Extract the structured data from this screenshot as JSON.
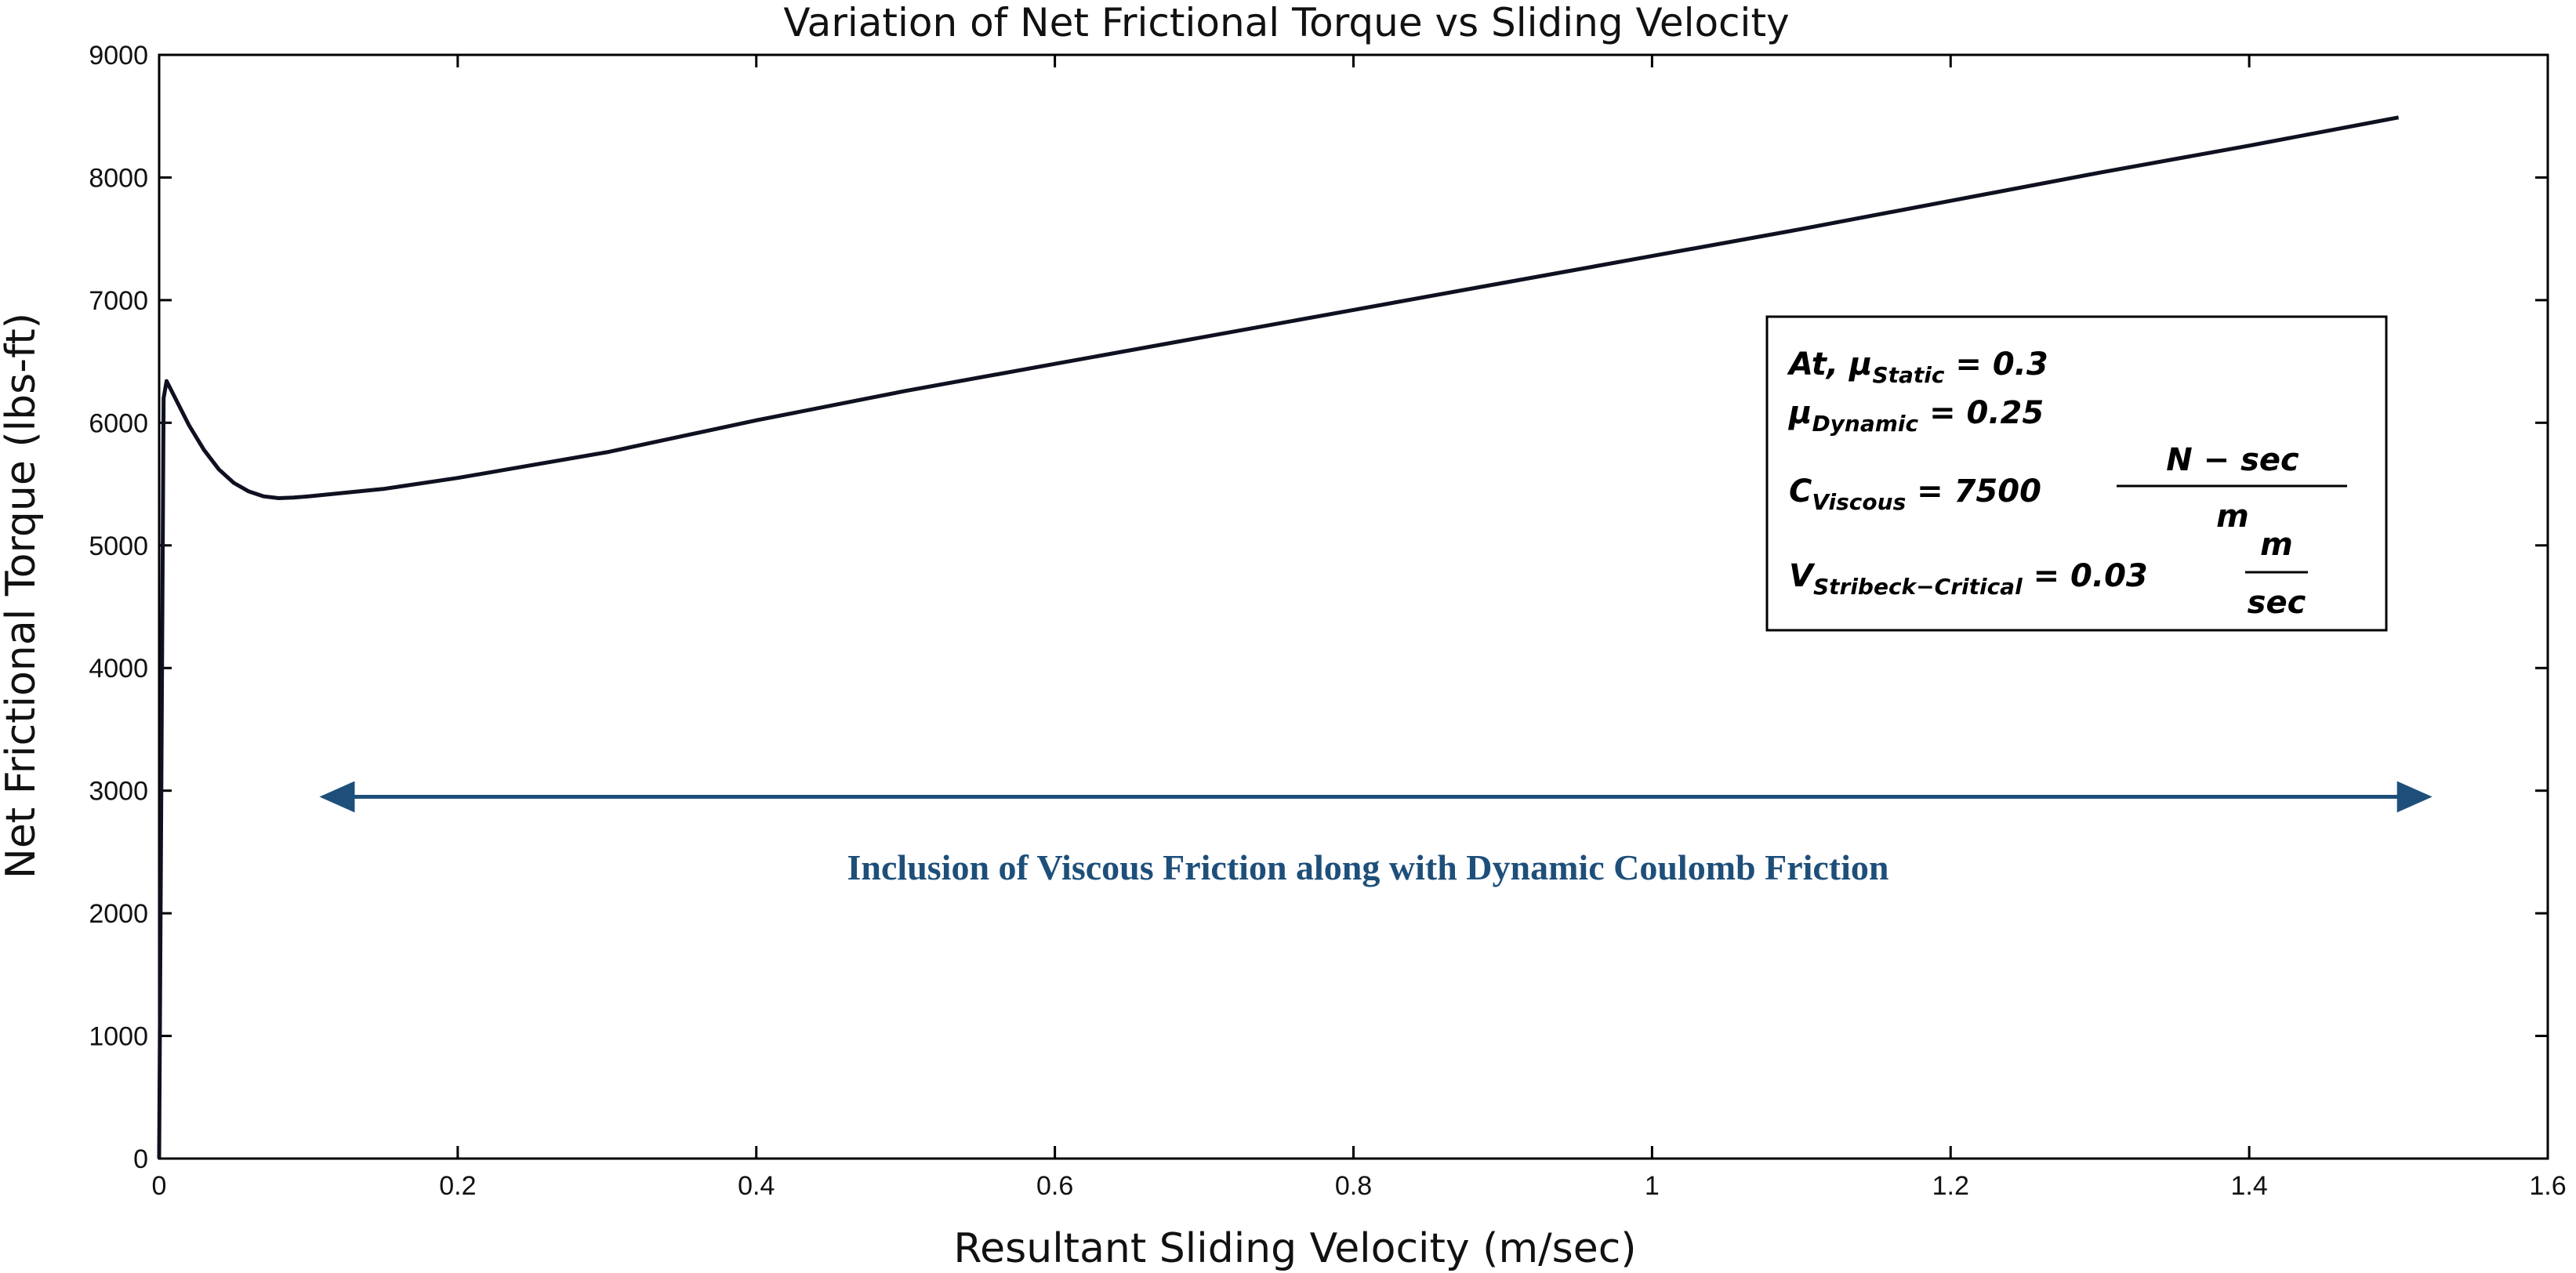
{
  "chart_data": {
    "type": "line",
    "title": "Variation of Net Frictional Torque vs Sliding Velocity",
    "xlabel": "Resultant Sliding Velocity (m/sec)",
    "ylabel": "Net Frictional Torque (lbs-ft)",
    "xlim": [
      0,
      1.6
    ],
    "ylim": [
      0,
      9000
    ],
    "xticks": [
      0,
      0.2,
      0.4,
      0.6,
      0.8,
      1,
      1.2,
      1.4,
      1.6
    ],
    "xtick_labels": [
      "0",
      "0.2",
      "0.4",
      "0.6",
      "0.8",
      "1",
      "1.2",
      "1.4",
      "1.6"
    ],
    "yticks": [
      0,
      1000,
      2000,
      3000,
      4000,
      5000,
      6000,
      7000,
      8000,
      9000
    ],
    "ytick_labels": [
      "0",
      "1000",
      "2000",
      "3000",
      "4000",
      "5000",
      "6000",
      "7000",
      "8000",
      "9000"
    ],
    "grid": false,
    "series": [
      {
        "color": "#0f1020",
        "x": [
          0,
          0.003,
          0.005,
          0.01,
          0.02,
          0.03,
          0.04,
          0.05,
          0.06,
          0.07,
          0.08,
          0.09,
          0.1,
          0.15,
          0.2,
          0.3,
          0.4,
          0.5,
          0.6,
          0.7,
          0.8,
          0.9,
          1.0,
          1.1,
          1.2,
          1.3,
          1.4,
          1.5
        ],
        "y": [
          0,
          6200,
          6340,
          6220,
          5980,
          5780,
          5620,
          5510,
          5440,
          5400,
          5385,
          5390,
          5400,
          5460,
          5550,
          5760,
          6020,
          6260,
          6480,
          6700,
          6920,
          7140,
          7360,
          7580,
          7810,
          8040,
          8260,
          8490
        ]
      }
    ],
    "legend": {
      "placement": "right",
      "lines": [
        {
          "main": "At, μ",
          "sub": "Static",
          "rest": " = 0.3"
        },
        {
          "main": "μ",
          "sub": "Dynamic",
          "rest": " = 0.25"
        },
        {
          "main": "C",
          "sub": "Viscous",
          "rest": " = 7500",
          "frac_num": "N − sec",
          "frac_den": "m"
        },
        {
          "main": "V",
          "sub": "Stribeck−Critical",
          "rest": " = 0.03",
          "frac_num": "m",
          "frac_den": "sec"
        }
      ]
    },
    "annotation": {
      "text": "Inclusion of Viscous Friction along with Dynamic Coulomb Friction",
      "arrow_from_x": 0.11,
      "arrow_to_x": 1.52,
      "arrow_y": 2950,
      "color": "#1e4f7a"
    }
  }
}
